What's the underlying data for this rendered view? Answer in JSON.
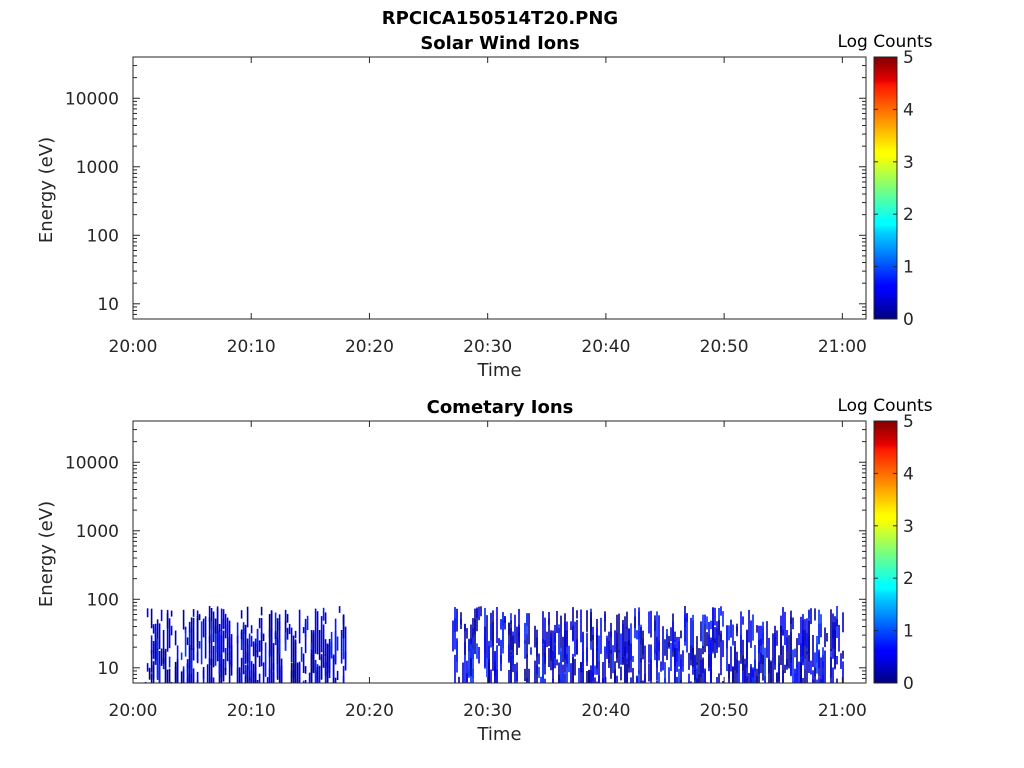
{
  "figure": {
    "title": "RPCICA150514T20.PNG"
  },
  "chart_data": [
    {
      "type": "heatmap",
      "title": "Solar Wind Ions",
      "xlabel": "Time",
      "ylabel": "Energy (eV)",
      "x_ticks": [
        "20:00",
        "20:10",
        "20:20",
        "20:30",
        "20:40",
        "20:50",
        "21:00"
      ],
      "xlim": [
        "20:00",
        "21:02"
      ],
      "y_scale": "log",
      "y_ticks": [
        "10",
        "100",
        "1000",
        "10000"
      ],
      "ylim": [
        6,
        40000
      ],
      "colorbar": {
        "label": "Log Counts",
        "ticks": [
          "0",
          "1",
          "2",
          "3",
          "4",
          "5"
        ],
        "range": [
          0,
          5
        ],
        "colormap": "jet"
      },
      "data_intervals": []
    },
    {
      "type": "heatmap",
      "title": "Cometary Ions",
      "xlabel": "Time",
      "ylabel": "Energy (eV)",
      "x_ticks": [
        "20:00",
        "20:10",
        "20:20",
        "20:30",
        "20:40",
        "20:50",
        "21:00"
      ],
      "xlim": [
        "20:00",
        "21:02"
      ],
      "y_scale": "log",
      "y_ticks": [
        "10",
        "100",
        "1000",
        "10000"
      ],
      "ylim": [
        6,
        40000
      ],
      "colorbar": {
        "label": "Log Counts",
        "ticks": [
          "0",
          "1",
          "2",
          "3",
          "4",
          "5"
        ],
        "range": [
          0,
          5
        ],
        "colormap": "jet"
      },
      "data_energy_range_eV": [
        6,
        80
      ],
      "typical_log_counts": [
        0,
        1
      ],
      "data_intervals": [
        {
          "start": "20:01",
          "end": "20:18"
        },
        {
          "start": "20:27",
          "end": "21:00"
        }
      ]
    }
  ]
}
